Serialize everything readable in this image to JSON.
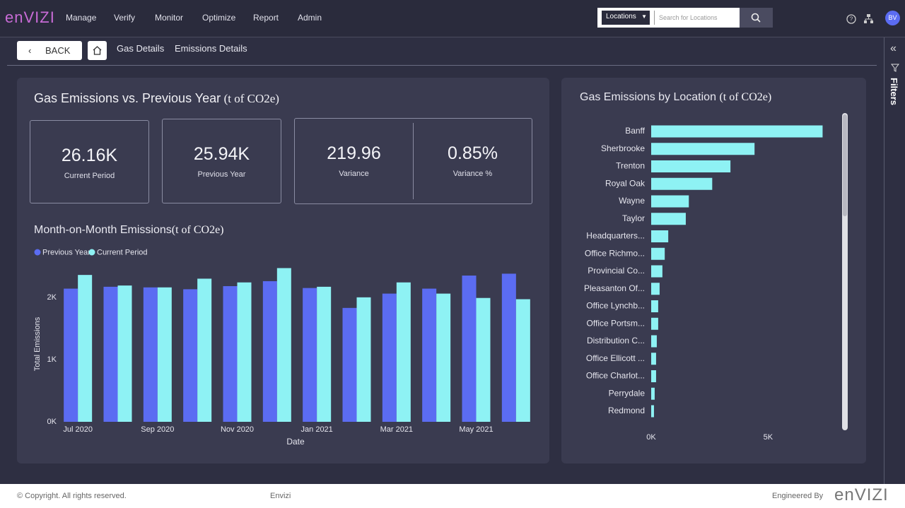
{
  "nav": {
    "logo": "enVIZI",
    "items": [
      "Manage",
      "Verify",
      "Monitor",
      "Optimize",
      "Report",
      "Admin"
    ],
    "location_select": "Locations",
    "search_placeholder": "Search for Locations",
    "avatar": "BV"
  },
  "toolbar": {
    "back": "BACK",
    "tabs": [
      "Gas Details",
      "Emissions Details"
    ],
    "filters": "Filters"
  },
  "summary": {
    "title": "Gas Emissions vs. Previous Year",
    "unit": "(t of CO2e)",
    "cards": [
      {
        "value": "26.16K",
        "label": "Current Period"
      },
      {
        "value": "25.94K",
        "label": "Previous Year"
      },
      {
        "value": "219.96",
        "label": "Variance"
      },
      {
        "value": "0.85%",
        "label": "Variance %"
      }
    ]
  },
  "month_chart": {
    "type": "bar",
    "title": "Month-on-Month Emissions",
    "unit": "(t of CO2e)",
    "x_label": "Date",
    "y_label": "Total Emissions",
    "categories": [
      "Jul 2020",
      null,
      "Sep 2020",
      null,
      "Nov 2020",
      null,
      "Jan 2021",
      null,
      "Mar 2021",
      null,
      "May 2021",
      null
    ],
    "series": [
      {
        "name": "Previous Year",
        "color": "#5b6cf2",
        "values": [
          2140,
          2170,
          2160,
          2130,
          2180,
          2260,
          2150,
          1830,
          2060,
          2140,
          2350,
          2380
        ]
      },
      {
        "name": "Current Period",
        "color": "#8ef2f4",
        "values": [
          2360,
          2190,
          2160,
          2300,
          2240,
          2470,
          2170,
          2000,
          2240,
          2060,
          1990,
          1970
        ]
      }
    ],
    "ylim": [
      0,
      2600
    ],
    "yticks": [
      {
        "value": 0,
        "label": "0K"
      },
      {
        "value": 1000,
        "label": "1K"
      },
      {
        "value": 2000,
        "label": "2K"
      }
    ]
  },
  "location_chart": {
    "type": "hbar",
    "title": "Gas Emissions by Location",
    "unit": "(t of CO2e)",
    "color": "#8ef2f4",
    "categories": [
      "Banff",
      "Sherbrooke",
      "Trenton",
      "Royal Oak",
      "Wayne",
      "Taylor",
      "Headquarters...",
      "Office Richmo...",
      "Provincial Co...",
      "Pleasanton Of...",
      "Office Lynchb...",
      "Office Portsm...",
      "Distribution C...",
      "Office Ellicott ...",
      "Office Charlot...",
      "Perrydale",
      "Redmond"
    ],
    "values": [
      7330,
      4420,
      3390,
      2610,
      1610,
      1480,
      730,
      580,
      480,
      360,
      300,
      300,
      240,
      210,
      210,
      150,
      120
    ],
    "xlim": [
      0,
      7800
    ],
    "xticks": [
      {
        "value": 0,
        "label": "0K"
      },
      {
        "value": 5000,
        "label": "5K"
      }
    ]
  },
  "footer": {
    "copyright": "© Copyright. All rights reserved.",
    "brand": "Envizi",
    "engineered": "Engineered By",
    "logo": "enVIZI"
  }
}
